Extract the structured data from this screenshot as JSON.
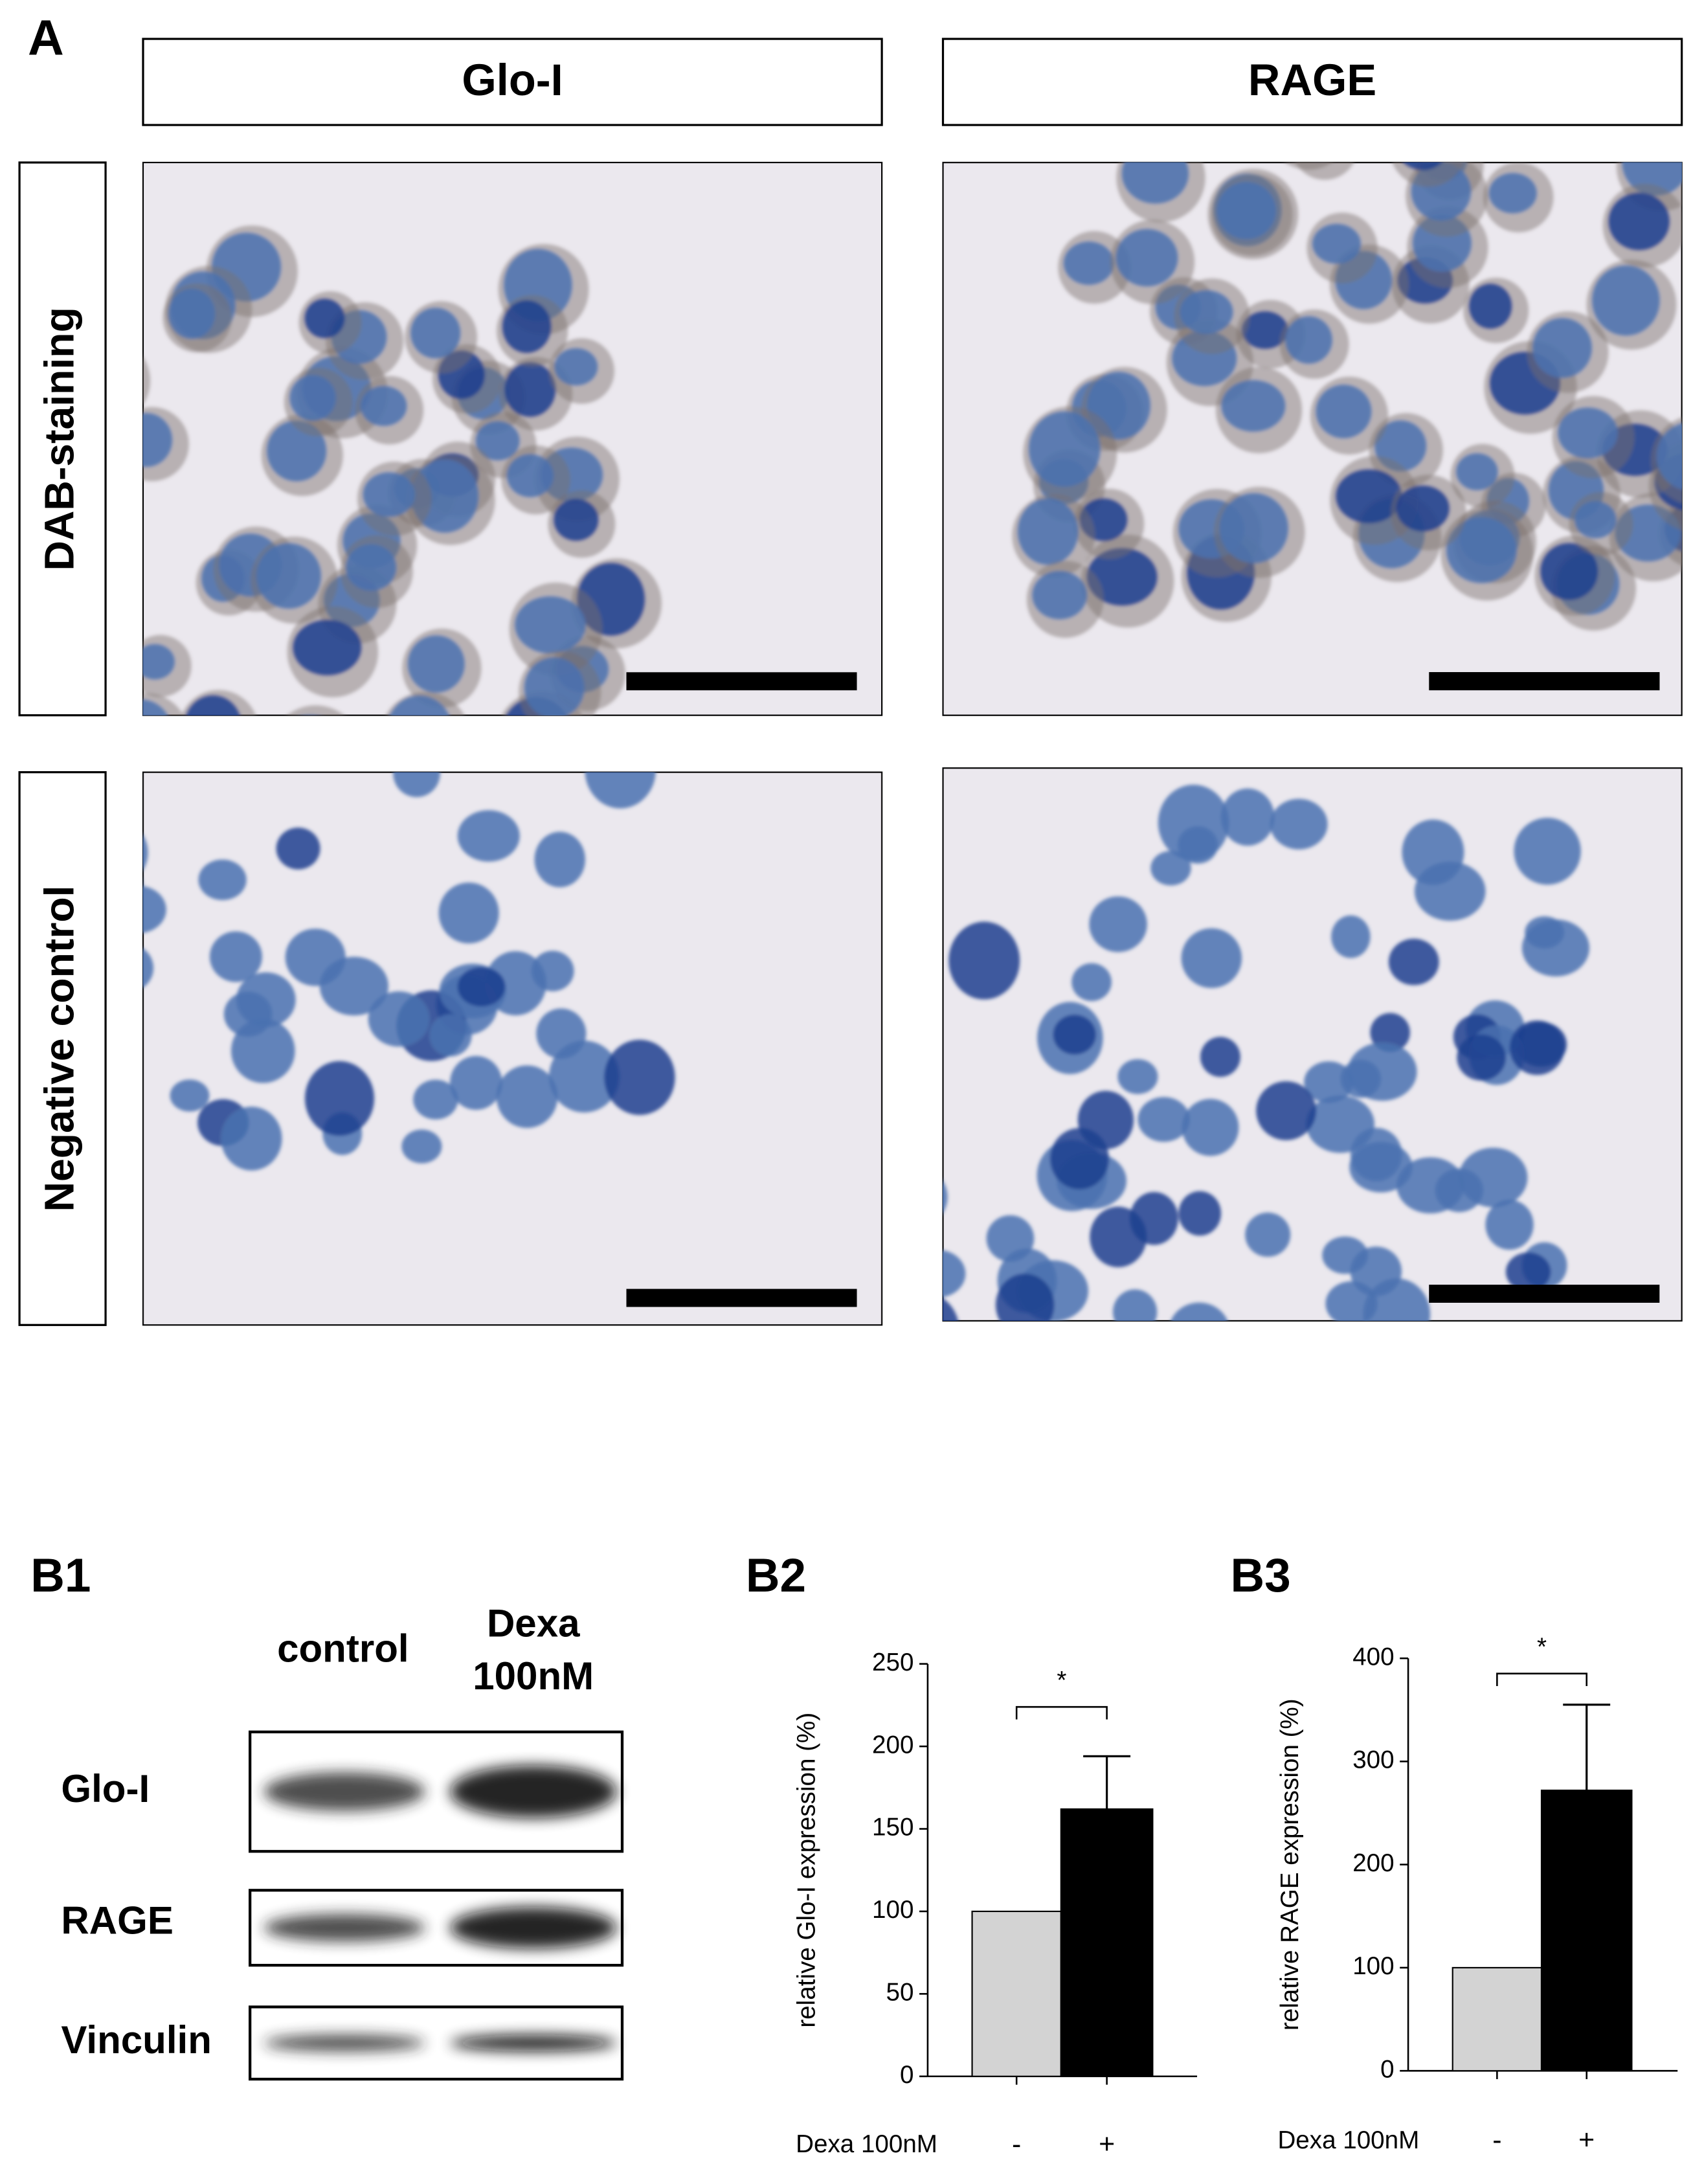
{
  "panel_a": {
    "label": "A",
    "columns": [
      "Glo-I",
      "RAGE"
    ],
    "rows": [
      "DAB-staining",
      "Negative control"
    ]
  },
  "panel_b1": {
    "label": "B1",
    "lanes": [
      "control",
      [
        "Dexa",
        "100nM"
      ]
    ],
    "blots": [
      "Glo-I",
      "RAGE",
      "Vinculin"
    ]
  },
  "chart_data": [
    {
      "type": "bar",
      "panel_label": "B2",
      "y_label": "relative Glo-I expression (%)",
      "x_label": "Dexa 100nM",
      "categories": [
        "-",
        "+"
      ],
      "values": [
        100,
        162
      ],
      "errors": [
        0,
        32
      ],
      "colors": [
        "#d3d3d3",
        "#000000"
      ],
      "ylim": [
        0,
        250
      ],
      "yticks": [
        0,
        50,
        100,
        150,
        200,
        250
      ],
      "annotation": "*"
    },
    {
      "type": "bar",
      "panel_label": "B3",
      "y_label": "relative RAGE expression  (%)",
      "x_label": "Dexa 100nM",
      "categories": [
        "-",
        "+"
      ],
      "values": [
        100,
        272
      ],
      "errors": [
        0,
        83
      ],
      "colors": [
        "#d3d3d3",
        "#000000"
      ],
      "ylim": [
        0,
        400
      ],
      "yticks": [
        0,
        100,
        200,
        300,
        400
      ],
      "annotation": "*"
    }
  ]
}
